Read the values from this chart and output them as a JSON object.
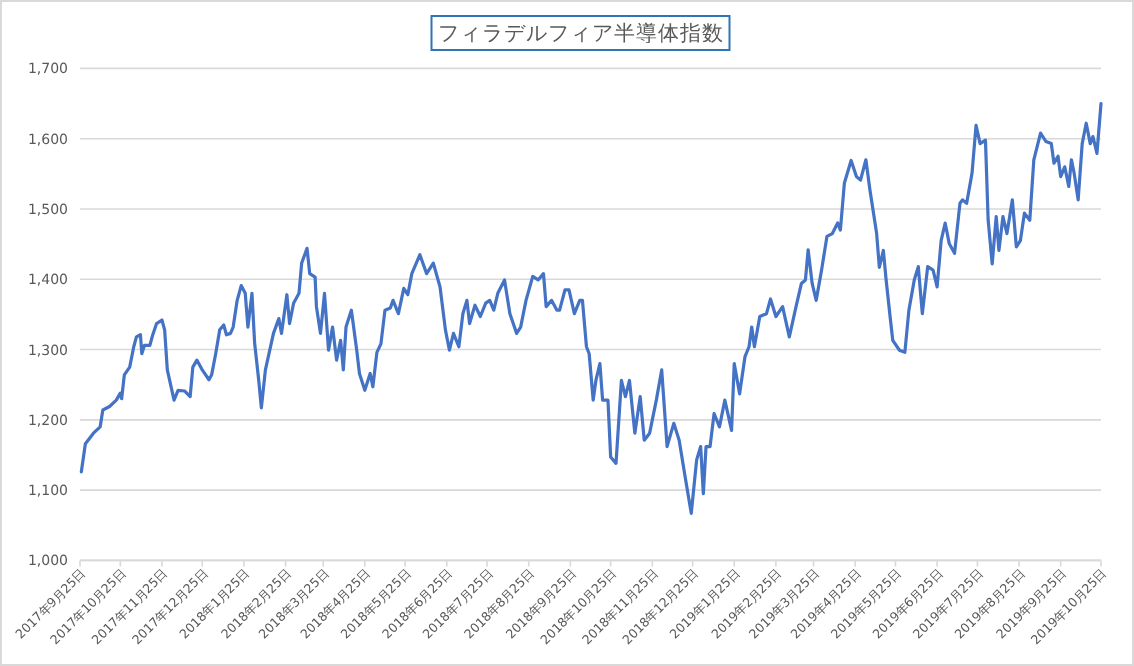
{
  "chart_data": {
    "type": "line",
    "title": "フィラデルフィア半導体指数",
    "grid": "y",
    "marker": "none",
    "line_style": "solid",
    "xlim": [
      "2017-09-25",
      "2019-10-25"
    ],
    "xticks": [
      {
        "value": "2017-09-25",
        "label": "2017年9月25日"
      },
      {
        "value": "2017-10-25",
        "label": "2017年10月25日"
      },
      {
        "value": "2017-11-25",
        "label": "2017年11月25日"
      },
      {
        "value": "2017-12-25",
        "label": "2017年12月25日"
      },
      {
        "value": "2018-01-25",
        "label": "2018年1月25日"
      },
      {
        "value": "2018-02-25",
        "label": "2018年2月25日"
      },
      {
        "value": "2018-03-25",
        "label": "2018年3月25日"
      },
      {
        "value": "2018-04-25",
        "label": "2018年4月25日"
      },
      {
        "value": "2018-05-25",
        "label": "2018年5月25日"
      },
      {
        "value": "2018-06-25",
        "label": "2018年6月25日"
      },
      {
        "value": "2018-07-25",
        "label": "2018年7月25日"
      },
      {
        "value": "2018-08-25",
        "label": "2018年8月25日"
      },
      {
        "value": "2018-09-25",
        "label": "2018年9月25日"
      },
      {
        "value": "2018-10-25",
        "label": "2018年10月25日"
      },
      {
        "value": "2018-11-25",
        "label": "2018年11月25日"
      },
      {
        "value": "2018-12-25",
        "label": "2018年12月25日"
      },
      {
        "value": "2019-01-25",
        "label": "2019年1月25日"
      },
      {
        "value": "2019-02-25",
        "label": "2019年2月25日"
      },
      {
        "value": "2019-03-25",
        "label": "2019年3月25日"
      },
      {
        "value": "2019-04-25",
        "label": "2019年4月25日"
      },
      {
        "value": "2019-05-25",
        "label": "2019年5月25日"
      },
      {
        "value": "2019-06-25",
        "label": "2019年6月25日"
      },
      {
        "value": "2019-07-25",
        "label": "2019年7月25日"
      },
      {
        "value": "2019-08-25",
        "label": "2019年8月25日"
      },
      {
        "value": "2019-09-25",
        "label": "2019年9月25日"
      },
      {
        "value": "2019-10-25",
        "label": "2019年10月25日"
      }
    ],
    "ylim": [
      1000,
      1700
    ],
    "yticks": [
      {
        "value": 1000,
        "label": "1,000"
      },
      {
        "value": 1100,
        "label": "1,100"
      },
      {
        "value": 1200,
        "label": "1,200"
      },
      {
        "value": 1300,
        "label": "1,300"
      },
      {
        "value": 1400,
        "label": "1,400"
      },
      {
        "value": 1500,
        "label": "1,500"
      },
      {
        "value": 1600,
        "label": "1,600"
      },
      {
        "value": 1700,
        "label": "1,700"
      }
    ],
    "x": [
      "2017-09-26",
      "2017-09-29",
      "2017-10-05",
      "2017-10-10",
      "2017-10-12",
      "2017-10-17",
      "2017-10-22",
      "2017-10-25",
      "2017-10-26",
      "2017-10-28",
      "2017-11-01",
      "2017-11-04",
      "2017-11-06",
      "2017-11-09",
      "2017-11-10",
      "2017-11-12",
      "2017-11-16",
      "2017-11-18",
      "2017-11-21",
      "2017-11-25",
      "2017-11-27",
      "2017-11-29",
      "2017-12-04",
      "2017-12-07",
      "2017-12-12",
      "2017-12-16",
      "2017-12-18",
      "2017-12-21",
      "2017-12-25",
      "2017-12-30",
      "2018-01-01",
      "2018-01-04",
      "2018-01-07",
      "2018-01-10",
      "2018-01-12",
      "2018-01-15",
      "2018-01-17",
      "2018-01-20",
      "2018-01-23",
      "2018-01-26",
      "2018-01-28",
      "2018-01-31",
      "2018-02-02",
      "2018-02-05",
      "2018-02-07",
      "2018-02-10",
      "2018-02-16",
      "2018-02-20",
      "2018-02-22",
      "2018-02-26",
      "2018-02-28",
      "2018-03-03",
      "2018-03-07",
      "2018-03-09",
      "2018-03-13",
      "2018-03-15",
      "2018-03-19",
      "2018-03-20",
      "2018-03-23",
      "2018-03-26",
      "2018-03-29",
      "2018-04-01",
      "2018-04-04",
      "2018-04-07",
      "2018-04-09",
      "2018-04-11",
      "2018-04-15",
      "2018-04-19",
      "2018-04-21",
      "2018-04-25",
      "2018-04-29",
      "2018-05-01",
      "2018-05-04",
      "2018-05-07",
      "2018-05-10",
      "2018-05-14",
      "2018-05-16",
      "2018-05-20",
      "2018-05-24",
      "2018-05-27",
      "2018-05-30",
      "2018-06-05",
      "2018-06-10",
      "2018-06-15",
      "2018-06-20",
      "2018-06-24",
      "2018-06-27",
      "2018-06-30",
      "2018-07-04",
      "2018-07-07",
      "2018-07-10",
      "2018-07-12",
      "2018-07-16",
      "2018-07-20",
      "2018-07-24",
      "2018-07-27",
      "2018-07-30",
      "2018-08-02",
      "2018-08-07",
      "2018-08-11",
      "2018-08-16",
      "2018-08-19",
      "2018-08-23",
      "2018-08-28",
      "2018-09-01",
      "2018-09-05",
      "2018-09-07",
      "2018-09-11",
      "2018-09-15",
      "2018-09-17",
      "2018-09-21",
      "2018-09-24",
      "2018-09-28",
      "2018-10-02",
      "2018-10-04",
      "2018-10-07",
      "2018-10-09",
      "2018-10-12",
      "2018-10-14",
      "2018-10-17",
      "2018-10-19",
      "2018-10-23",
      "2018-10-25",
      "2018-10-29",
      "2018-11-02",
      "2018-11-05",
      "2018-11-08",
      "2018-11-12",
      "2018-11-16",
      "2018-11-19",
      "2018-11-23",
      "2018-11-28",
      "2018-12-02",
      "2018-12-06",
      "2018-12-11",
      "2018-12-15",
      "2018-12-19",
      "2018-12-24",
      "2018-12-28",
      "2018-12-31",
      "2019-01-02",
      "2019-01-04",
      "2019-01-07",
      "2019-01-10",
      "2019-01-14",
      "2019-01-18",
      "2019-01-23",
      "2019-01-25",
      "2019-01-29",
      "2019-02-02",
      "2019-02-05",
      "2019-02-07",
      "2019-02-09",
      "2019-02-13",
      "2019-02-18",
      "2019-02-21",
      "2019-02-25",
      "2019-03-02",
      "2019-03-07",
      "2019-03-12",
      "2019-03-16",
      "2019-03-19",
      "2019-03-21",
      "2019-03-24",
      "2019-03-27",
      "2019-03-31",
      "2019-04-04",
      "2019-04-08",
      "2019-04-12",
      "2019-04-14",
      "2019-04-17",
      "2019-04-22",
      "2019-04-26",
      "2019-04-29",
      "2019-05-03",
      "2019-05-06",
      "2019-05-11",
      "2019-05-13",
      "2019-05-16",
      "2019-05-18",
      "2019-05-21",
      "2019-05-23",
      "2019-05-28",
      "2019-06-01",
      "2019-06-04",
      "2019-06-08",
      "2019-06-11",
      "2019-06-14",
      "2019-06-18",
      "2019-06-22",
      "2019-06-25",
      "2019-06-28",
      "2019-07-01",
      "2019-07-04",
      "2019-07-08",
      "2019-07-12",
      "2019-07-14",
      "2019-07-17",
      "2019-07-21",
      "2019-07-24",
      "2019-07-27",
      "2019-07-31",
      "2019-08-02",
      "2019-08-05",
      "2019-08-08",
      "2019-08-10",
      "2019-08-13",
      "2019-08-16",
      "2019-08-20",
      "2019-08-23",
      "2019-08-26",
      "2019-08-29",
      "2019-09-02",
      "2019-09-05",
      "2019-09-10",
      "2019-09-14",
      "2019-09-18",
      "2019-09-20",
      "2019-09-23",
      "2019-09-25",
      "2019-09-28",
      "2019-10-01",
      "2019-10-03",
      "2019-10-05",
      "2019-10-08",
      "2019-10-11",
      "2019-10-14",
      "2019-10-17",
      "2019-10-19",
      "2019-10-22",
      "2019-10-25"
    ],
    "series": [
      {
        "color": "#4472c4",
        "values": [
          1126,
          1166,
          1181,
          1190,
          1214,
          1219,
          1228,
          1238,
          1230,
          1264,
          1275,
          1304,
          1318,
          1321,
          1294,
          1306,
          1306,
          1320,
          1337,
          1342,
          1328,
          1271,
          1228,
          1242,
          1241,
          1233,
          1275,
          1285,
          1271,
          1257,
          1264,
          1294,
          1328,
          1335,
          1321,
          1323,
          1332,
          1370,
          1391,
          1380,
          1332,
          1380,
          1309,
          1257,
          1217,
          1271,
          1323,
          1344,
          1323,
          1378,
          1337,
          1366,
          1380,
          1423,
          1444,
          1408,
          1403,
          1361,
          1323,
          1380,
          1299,
          1332,
          1285,
          1313,
          1271,
          1332,
          1356,
          1299,
          1266,
          1242,
          1266,
          1247,
          1296,
          1308,
          1356,
          1359,
          1370,
          1351,
          1387,
          1378,
          1408,
          1435,
          1408,
          1423,
          1389,
          1328,
          1299,
          1323,
          1304,
          1351,
          1370,
          1337,
          1363,
          1347,
          1366,
          1370,
          1356,
          1380,
          1399,
          1351,
          1323,
          1332,
          1370,
          1404,
          1399,
          1408,
          1361,
          1370,
          1356,
          1356,
          1385,
          1385,
          1351,
          1370,
          1370,
          1304,
          1294,
          1228,
          1256,
          1280,
          1228,
          1228,
          1147,
          1138,
          1256,
          1233,
          1256,
          1181,
          1233,
          1171,
          1181,
          1228,
          1271,
          1162,
          1195,
          1171,
          1124,
          1067,
          1143,
          1162,
          1095,
          1162,
          1162,
          1209,
          1190,
          1228,
          1185,
          1280,
          1237,
          1290,
          1304,
          1332,
          1304,
          1347,
          1351,
          1372,
          1347,
          1361,
          1318,
          1361,
          1394,
          1399,
          1442,
          1394,
          1370,
          1413,
          1461,
          1465,
          1480,
          1470,
          1537,
          1569,
          1546,
          1541,
          1570,
          1527,
          1465,
          1417,
          1441,
          1400,
          1347,
          1313,
          1299,
          1296,
          1356,
          1399,
          1418,
          1351,
          1418,
          1413,
          1389,
          1455,
          1480,
          1451,
          1437,
          1508,
          1513,
          1508,
          1551,
          1619,
          1593,
          1598,
          1484,
          1422,
          1489,
          1441,
          1489,
          1465,
          1513,
          1446,
          1455,
          1494,
          1484,
          1570,
          1608,
          1596,
          1593,
          1565,
          1575,
          1546,
          1560,
          1532,
          1570,
          1551,
          1513,
          1593,
          1622,
          1593,
          1603,
          1579,
          1650
        ]
      }
    ]
  }
}
